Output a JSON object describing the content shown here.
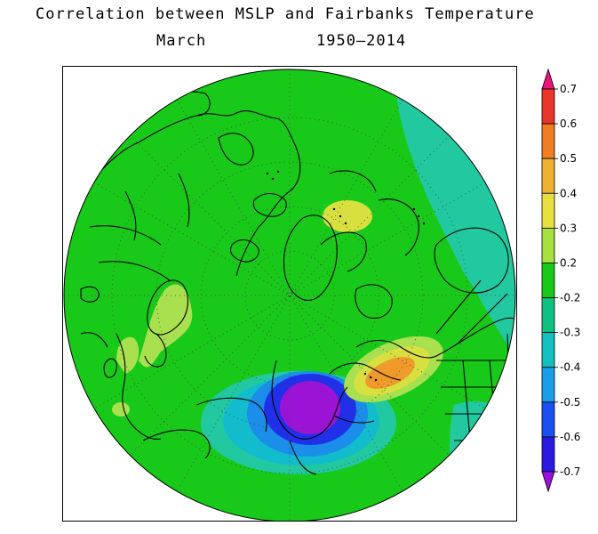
{
  "title": {
    "line1": "Correlation between MSLP and Fairbanks Temperature",
    "month": "March",
    "years": "1950–2014"
  },
  "legend": {
    "labels": [
      "0.7",
      "0.6",
      "0.5",
      "0.4",
      "0.3",
      "0.2",
      "-0.2",
      "-0.3",
      "-0.4",
      "-0.5",
      "-0.6",
      "-0.7"
    ],
    "colors": [
      "#e8157a",
      "#e8352a",
      "#f07d22",
      "#f0b030",
      "#e8e040",
      "#a8e040",
      "#19c919",
      "#10c080",
      "#12c0c0",
      "#1a9ee8",
      "#1a50f0",
      "#2a1ae0",
      "#9a10d8"
    ]
  },
  "colors": {
    "background_green": "#19c919",
    "teal": "#22c9a0",
    "cyan": "#12bccc",
    "blue": "#1a8ee8",
    "deep_blue": "#2030e8",
    "purple": "#9b14d6",
    "orange": "#f09a2a",
    "yellow": "#d8e040",
    "yellowgreen": "#a8e050"
  }
}
